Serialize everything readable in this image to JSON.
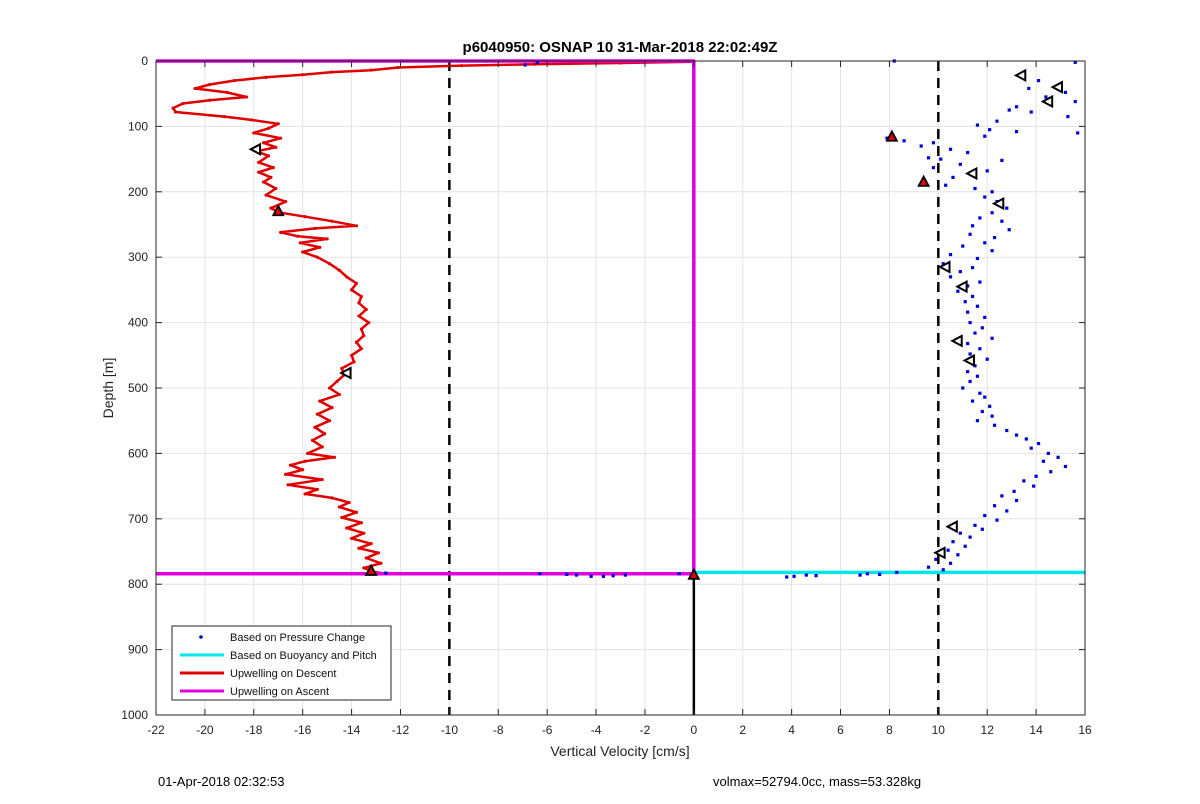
{
  "chart_data": {
    "type": "line",
    "title": "p6040950: OSNAP 10 31-Mar-2018 22:02:49Z",
    "xlabel": "Vertical Velocity [cm/s]",
    "ylabel": "Depth [m]",
    "xlim": [
      -22,
      16
    ],
    "ylim": [
      0,
      1000
    ],
    "y_reversed": true,
    "grid": true,
    "xticks": [
      -22,
      -20,
      -18,
      -16,
      -14,
      -12,
      -10,
      -8,
      -6,
      -4,
      -2,
      0,
      2,
      4,
      6,
      8,
      10,
      12,
      14,
      16
    ],
    "yticks": [
      0,
      100,
      200,
      300,
      400,
      500,
      600,
      700,
      800,
      900,
      1000
    ],
    "legend_position": "bottom-left",
    "series": [
      {
        "name": "Based on Pressure Change",
        "style": "dots",
        "color": "#0000dd",
        "points": [
          [
            8.2,
            0
          ],
          [
            15.6,
            2
          ],
          [
            13.4,
            22
          ],
          [
            14.1,
            30
          ],
          [
            13.7,
            42
          ],
          [
            15.2,
            48
          ],
          [
            14.4,
            55
          ],
          [
            15.6,
            62
          ],
          [
            13.2,
            70
          ],
          [
            12.9,
            75
          ],
          [
            13.8,
            78
          ],
          [
            15.3,
            85
          ],
          [
            12.4,
            92
          ],
          [
            11.6,
            98
          ],
          [
            12.1,
            105
          ],
          [
            13.2,
            108
          ],
          [
            15.7,
            110
          ],
          [
            11.9,
            115
          ],
          [
            7.9,
            118
          ],
          [
            8.6,
            122
          ],
          [
            9.8,
            125
          ],
          [
            9.3,
            130
          ],
          [
            10.5,
            135
          ],
          [
            11.2,
            140
          ],
          [
            9.6,
            148
          ],
          [
            10.1,
            150
          ],
          [
            12.6,
            152
          ],
          [
            10.9,
            158
          ],
          [
            9.8,
            163
          ],
          [
            12.0,
            168
          ],
          [
            11.3,
            172
          ],
          [
            10.6,
            178
          ],
          [
            9.4,
            183
          ],
          [
            10.3,
            190
          ],
          [
            11.5,
            195
          ],
          [
            12.2,
            200
          ],
          [
            11.9,
            208
          ],
          [
            12.4,
            215
          ],
          [
            12.8,
            225
          ],
          [
            12.2,
            232
          ],
          [
            11.7,
            240
          ],
          [
            12.6,
            245
          ],
          [
            11.4,
            252
          ],
          [
            12.9,
            258
          ],
          [
            11.3,
            265
          ],
          [
            12.3,
            270
          ],
          [
            11.9,
            278
          ],
          [
            11.0,
            283
          ],
          [
            12.2,
            290
          ],
          [
            10.5,
            296
          ],
          [
            11.6,
            302
          ],
          [
            10.2,
            310
          ],
          [
            11.4,
            316
          ],
          [
            10.9,
            322
          ],
          [
            10.5,
            330
          ],
          [
            11.7,
            338
          ],
          [
            11.2,
            344
          ],
          [
            10.8,
            352
          ],
          [
            11.4,
            360
          ],
          [
            11.1,
            368
          ],
          [
            11.6,
            375
          ],
          [
            11.2,
            384
          ],
          [
            11.9,
            392
          ],
          [
            11.3,
            400
          ],
          [
            11.8,
            408
          ],
          [
            11.5,
            416
          ],
          [
            12.2,
            424
          ],
          [
            11.2,
            432
          ],
          [
            11.7,
            440
          ],
          [
            11.3,
            448
          ],
          [
            12.0,
            456
          ],
          [
            11.5,
            466
          ],
          [
            11.2,
            475
          ],
          [
            11.6,
            482
          ],
          [
            11.3,
            490
          ],
          [
            11.0,
            500
          ],
          [
            11.7,
            508
          ],
          [
            11.9,
            514
          ],
          [
            11.4,
            520
          ],
          [
            12.1,
            528
          ],
          [
            11.8,
            536
          ],
          [
            12.2,
            543
          ],
          [
            11.6,
            550
          ],
          [
            12.3,
            557
          ],
          [
            12.8,
            565
          ],
          [
            13.2,
            572
          ],
          [
            13.6,
            578
          ],
          [
            14.1,
            585
          ],
          [
            13.8,
            592
          ],
          [
            14.5,
            600
          ],
          [
            14.9,
            606
          ],
          [
            14.3,
            612
          ],
          [
            15.2,
            620
          ],
          [
            14.6,
            628
          ],
          [
            14.0,
            635
          ],
          [
            13.5,
            642
          ],
          [
            13.9,
            650
          ],
          [
            13.1,
            658
          ],
          [
            12.6,
            665
          ],
          [
            13.2,
            672
          ],
          [
            12.3,
            680
          ],
          [
            12.8,
            688
          ],
          [
            11.9,
            695
          ],
          [
            12.4,
            702
          ],
          [
            11.5,
            710
          ],
          [
            11.8,
            716
          ],
          [
            10.9,
            722
          ],
          [
            11.3,
            728
          ],
          [
            10.6,
            735
          ],
          [
            11.1,
            742
          ],
          [
            10.4,
            748
          ],
          [
            10.8,
            755
          ],
          [
            9.9,
            762
          ],
          [
            10.5,
            768
          ],
          [
            9.6,
            774
          ],
          [
            10.2,
            778
          ],
          [
            8.3,
            782
          ],
          [
            7.6,
            785
          ],
          [
            7.1,
            784
          ],
          [
            6.8,
            786
          ],
          [
            5.0,
            787
          ],
          [
            4.6,
            786
          ],
          [
            4.1,
            788
          ],
          [
            3.8,
            789
          ],
          [
            -0.6,
            784
          ],
          [
            -2.8,
            786
          ],
          [
            -3.3,
            787
          ],
          [
            -3.7,
            788
          ],
          [
            -4.2,
            788
          ],
          [
            -4.8,
            786
          ],
          [
            -5.2,
            785
          ],
          [
            -6.3,
            784
          ],
          [
            -6.4,
            2
          ],
          [
            -6.9,
            6
          ],
          [
            -12.6,
            783
          ]
        ]
      },
      {
        "name": "Based on Buoyancy and Pitch",
        "style": "line",
        "color": "#00e5ee",
        "points": [
          [
            0,
            0
          ],
          [
            0,
            782
          ],
          [
            16,
            782
          ]
        ]
      },
      {
        "name": "Upwelling on Descent",
        "style": "line-dots",
        "color": "#e00000",
        "points": [
          [
            0,
            1
          ],
          [
            -3,
            3
          ],
          [
            -6.5,
            5
          ],
          [
            -9.5,
            7
          ],
          [
            -12.1,
            10
          ],
          [
            -13.2,
            14
          ],
          [
            -14.8,
            17
          ],
          [
            -16.0,
            21
          ],
          [
            -17.5,
            25
          ],
          [
            -18.8,
            30
          ],
          [
            -19.8,
            36
          ],
          [
            -20.4,
            42
          ],
          [
            -19.1,
            48
          ],
          [
            -18.3,
            55
          ],
          [
            -19.8,
            60
          ],
          [
            -20.9,
            65
          ],
          [
            -21.3,
            72
          ],
          [
            -21.2,
            78
          ],
          [
            -19.2,
            85
          ],
          [
            -18.1,
            90
          ],
          [
            -17.0,
            96
          ],
          [
            -17.4,
            103
          ],
          [
            -18.0,
            110
          ],
          [
            -16.9,
            118
          ],
          [
            -17.6,
            125
          ],
          [
            -17.1,
            132
          ],
          [
            -17.9,
            138
          ],
          [
            -17.4,
            145
          ],
          [
            -17.8,
            155
          ],
          [
            -17.2,
            163
          ],
          [
            -17.8,
            170
          ],
          [
            -17.3,
            178
          ],
          [
            -17.6,
            185
          ],
          [
            -17.1,
            195
          ],
          [
            -17.5,
            205
          ],
          [
            -16.7,
            215
          ],
          [
            -17.3,
            225
          ],
          [
            -16.9,
            232
          ],
          [
            -15.9,
            238
          ],
          [
            -14.8,
            245
          ],
          [
            -13.8,
            252
          ],
          [
            -15.5,
            256
          ],
          [
            -16.9,
            262
          ],
          [
            -16.2,
            268
          ],
          [
            -15.0,
            272
          ],
          [
            -16.1,
            278
          ],
          [
            -15.3,
            285
          ],
          [
            -16.0,
            292
          ],
          [
            -15.4,
            300
          ],
          [
            -14.9,
            310
          ],
          [
            -14.5,
            320
          ],
          [
            -14.2,
            330
          ],
          [
            -13.8,
            340
          ],
          [
            -14.0,
            350
          ],
          [
            -13.6,
            360
          ],
          [
            -13.7,
            370
          ],
          [
            -13.4,
            380
          ],
          [
            -13.7,
            390
          ],
          [
            -13.3,
            400
          ],
          [
            -13.6,
            410
          ],
          [
            -13.5,
            420
          ],
          [
            -13.8,
            430
          ],
          [
            -13.6,
            440
          ],
          [
            -14.0,
            450
          ],
          [
            -13.9,
            460
          ],
          [
            -14.4,
            470
          ],
          [
            -14.3,
            480
          ],
          [
            -14.6,
            490
          ],
          [
            -14.9,
            500
          ],
          [
            -14.5,
            510
          ],
          [
            -15.3,
            520
          ],
          [
            -14.8,
            530
          ],
          [
            -15.4,
            540
          ],
          [
            -14.9,
            550
          ],
          [
            -15.5,
            560
          ],
          [
            -15.1,
            570
          ],
          [
            -15.6,
            580
          ],
          [
            -15.2,
            590
          ],
          [
            -15.8,
            600
          ],
          [
            -14.7,
            606
          ],
          [
            -15.9,
            612
          ],
          [
            -16.5,
            618
          ],
          [
            -16.0,
            625
          ],
          [
            -16.7,
            632
          ],
          [
            -15.2,
            640
          ],
          [
            -16.6,
            648
          ],
          [
            -15.4,
            655
          ],
          [
            -15.9,
            662
          ],
          [
            -14.8,
            668
          ],
          [
            -14.1,
            675
          ],
          [
            -14.5,
            682
          ],
          [
            -13.8,
            690
          ],
          [
            -14.4,
            698
          ],
          [
            -13.6,
            706
          ],
          [
            -14.2,
            714
          ],
          [
            -13.5,
            722
          ],
          [
            -14.0,
            730
          ],
          [
            -13.2,
            738
          ],
          [
            -13.7,
            745
          ],
          [
            -12.9,
            752
          ],
          [
            -13.4,
            760
          ],
          [
            -12.8,
            768
          ],
          [
            -13.5,
            775
          ],
          [
            -13.0,
            782
          ],
          [
            -12.6,
            784
          ]
        ]
      },
      {
        "name": "Upwelling on Ascent",
        "style": "line",
        "color": "#e000e0",
        "points": [
          [
            -22,
            0
          ],
          [
            0,
            0
          ],
          [
            0,
            784
          ],
          [
            -22,
            784
          ]
        ]
      }
    ],
    "markers": {
      "ascent_triangles": [
        [
          13.4,
          22
        ],
        [
          14.9,
          40
        ],
        [
          14.5,
          62
        ],
        [
          11.4,
          172
        ],
        [
          12.5,
          218
        ],
        [
          10.3,
          315
        ],
        [
          11.0,
          345
        ],
        [
          10.8,
          428
        ],
        [
          11.3,
          458
        ],
        [
          10.6,
          712
        ],
        [
          10.1,
          752
        ],
        [
          -17.9,
          135
        ],
        [
          -14.2,
          477
        ]
      ],
      "descent_triangles": [
        [
          8.1,
          116
        ],
        [
          9.4,
          185
        ],
        [
          -17.0,
          230
        ],
        [
          0.0,
          786
        ],
        [
          -13.2,
          780
        ]
      ]
    },
    "reference_lines": {
      "dashed_x": [
        -10,
        10
      ],
      "solid_x_segment": {
        "x": 0,
        "y_from": 786,
        "y_to": 1000
      }
    }
  },
  "legend": {
    "items": [
      {
        "label": "Based on Pressure Change",
        "style": "dot",
        "color": "#0000dd"
      },
      {
        "label": "Based on Buoyancy and Pitch",
        "style": "line",
        "color": "#00e5ee"
      },
      {
        "label": "Upwelling on Descent",
        "style": "line",
        "color": "#e00000"
      },
      {
        "label": "Upwelling on Ascent",
        "style": "line",
        "color": "#e000e0"
      }
    ]
  },
  "footer": {
    "left": "01-Apr-2018 02:32:53",
    "right": "volmax=52794.0cc, mass=53.328kg"
  }
}
